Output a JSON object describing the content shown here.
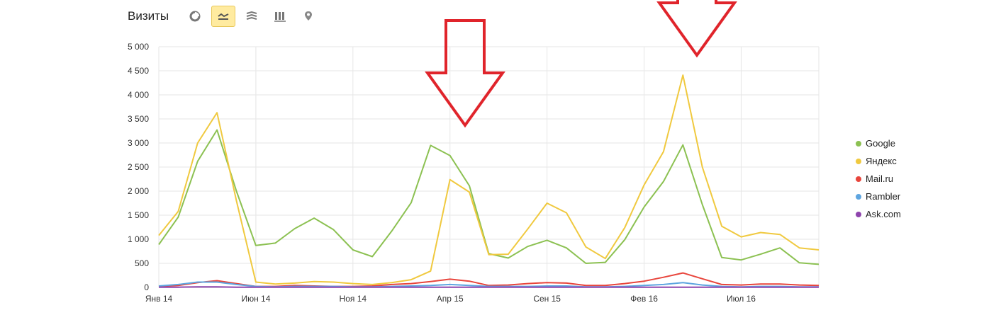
{
  "header": {
    "title": "Визиты",
    "buttons": [
      {
        "icon": "pie-chart-icon",
        "active": false
      },
      {
        "icon": "line-chart-icon",
        "active": true
      },
      {
        "icon": "area-chart-icon",
        "active": false
      },
      {
        "icon": "bar-chart-icon",
        "active": false
      },
      {
        "icon": "map-pin-icon",
        "active": false
      }
    ]
  },
  "chart_data": {
    "type": "line",
    "y_ticks": [
      "0",
      "500",
      "1 000",
      "1 500",
      "2 000",
      "2 500",
      "3 000",
      "3 500",
      "4 000",
      "4 500",
      "5 000"
    ],
    "ylim": [
      0,
      5000
    ],
    "x_ticks": [
      "Янв 14",
      "Июн 14",
      "Ноя 14",
      "Апр 15",
      "Сен 15",
      "Фев 16",
      "Июл 16"
    ],
    "x": [
      "2014-01",
      "2014-02",
      "2014-03",
      "2014-04",
      "2014-05",
      "2014-06",
      "2014-07",
      "2014-08",
      "2014-09",
      "2014-10",
      "2014-11",
      "2014-12",
      "2015-01",
      "2015-02",
      "2015-03",
      "2015-04",
      "2015-05",
      "2015-06",
      "2015-07",
      "2015-08",
      "2015-09",
      "2015-10",
      "2015-11",
      "2015-12",
      "2016-01",
      "2016-02",
      "2016-03",
      "2016-04",
      "2016-05",
      "2016-06",
      "2016-07",
      "2016-08",
      "2016-09",
      "2016-10",
      "2016-11"
    ],
    "grid": true,
    "legend_position": "right",
    "series": [
      {
        "name": "Google",
        "color": "#8cc152",
        "values": [
          890,
          1460,
          2620,
          3270,
          2000,
          870,
          920,
          1220,
          1440,
          1200,
          780,
          640,
          1170,
          1760,
          2950,
          2740,
          2110,
          700,
          610,
          850,
          980,
          820,
          500,
          520,
          990,
          1670,
          2200,
          2960,
          1720,
          620,
          570,
          690,
          820,
          510,
          480
        ]
      },
      {
        "name": "Яндекс",
        "color": "#f0c93f",
        "values": [
          1080,
          1580,
          3000,
          3630,
          1800,
          110,
          70,
          90,
          120,
          110,
          80,
          60,
          100,
          160,
          340,
          2240,
          1980,
          680,
          690,
          1210,
          1750,
          1550,
          840,
          600,
          1240,
          2130,
          2820,
          4410,
          2500,
          1270,
          1050,
          1140,
          1100,
          820,
          780
        ]
      },
      {
        "name": "Mail.ru",
        "color": "#e8453c",
        "values": [
          20,
          40,
          100,
          140,
          80,
          20,
          20,
          40,
          30,
          20,
          20,
          30,
          60,
          80,
          120,
          170,
          130,
          40,
          50,
          80,
          100,
          90,
          40,
          40,
          80,
          130,
          210,
          300,
          180,
          60,
          50,
          70,
          70,
          50,
          40
        ]
      },
      {
        "name": "Rambler",
        "color": "#5ea5e0",
        "values": [
          30,
          60,
          110,
          110,
          60,
          20,
          10,
          20,
          20,
          20,
          10,
          10,
          20,
          30,
          40,
          60,
          40,
          20,
          20,
          20,
          30,
          30,
          10,
          10,
          20,
          40,
          60,
          100,
          50,
          20,
          10,
          20,
          20,
          10,
          10
        ]
      },
      {
        "name": "Ask.com",
        "color": "#8e44ad",
        "values": [
          5,
          5,
          10,
          10,
          5,
          5,
          5,
          5,
          5,
          5,
          5,
          5,
          5,
          5,
          5,
          5,
          5,
          5,
          5,
          5,
          5,
          5,
          5,
          5,
          5,
          5,
          5,
          5,
          5,
          5,
          5,
          5,
          5,
          5,
          5
        ]
      }
    ]
  }
}
